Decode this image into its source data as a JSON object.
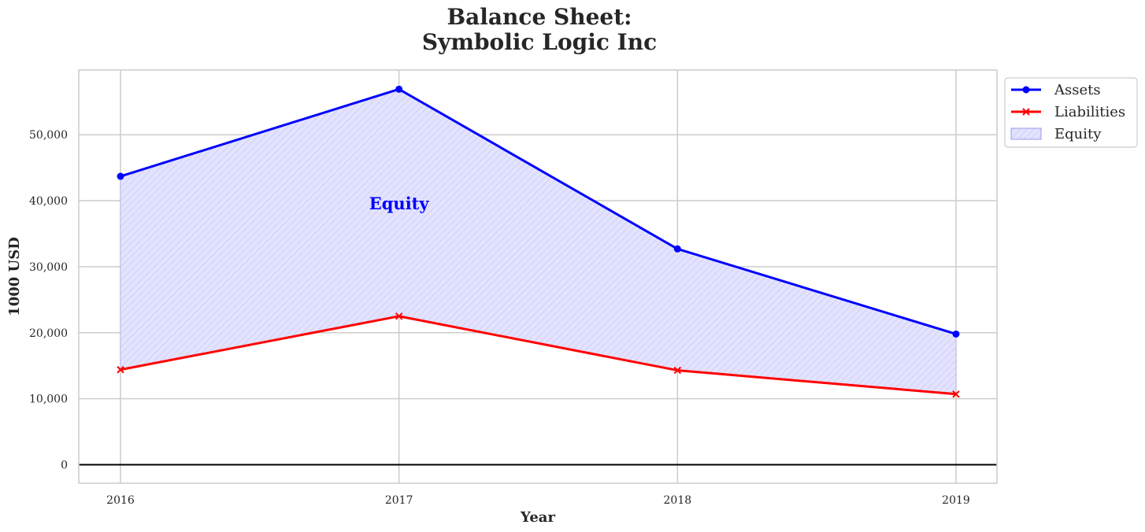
{
  "chart_data": {
    "type": "line",
    "title_line1": "Balance Sheet:",
    "title_line2": "Symbolic Logic Inc",
    "xlabel": "Year",
    "ylabel": "1000 USD",
    "categories": [
      "2016",
      "2017",
      "2018",
      "2019"
    ],
    "series": [
      {
        "name": "Assets",
        "values": [
          43700,
          56900,
          32700,
          19800
        ],
        "color": "#0000ff",
        "marker": "circle"
      },
      {
        "name": "Liabilities",
        "values": [
          14400,
          22500,
          14300,
          10700
        ],
        "color": "#ff0000",
        "marker": "x"
      }
    ],
    "fill": {
      "name": "Equity",
      "between": [
        "Assets",
        "Liabilities"
      ],
      "color": "#0000ff",
      "hatch": "diagonal"
    },
    "annotation": {
      "text": "Equity",
      "x": "2017",
      "y": 39500,
      "color": "#0000ff"
    },
    "ylim": [
      -2800,
      59800
    ],
    "yticks": [
      0,
      10000,
      20000,
      30000,
      40000,
      50000
    ],
    "ytick_labels": [
      "0",
      "10,000",
      "20,000",
      "30,000",
      "40,000",
      "50,000"
    ],
    "zero_line": true,
    "grid": true,
    "legend_position": "outside-top-right"
  }
}
